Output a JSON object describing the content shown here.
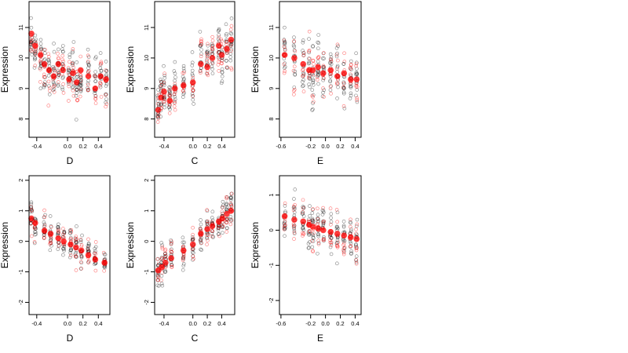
{
  "colors": {
    "observed": "#000000",
    "fitted": "#ff0000"
  },
  "chart_data": [
    {
      "type": "scatter",
      "xlabel": "D",
      "ylabel": "Expression",
      "xticks": [
        -0.4,
        0.0,
        0.2,
        0.4
      ],
      "xtick_labels": [
        "-0.4",
        "0.0",
        "0.2",
        "0.4"
      ],
      "yticks": [
        8,
        9,
        10,
        11
      ],
      "ytick_labels": [
        "8",
        "9",
        "10",
        "11"
      ],
      "xlim": [
        -0.5,
        0.55
      ],
      "ylim": [
        7.4,
        11.85
      ],
      "seed": 11,
      "groups": [
        [
          -0.47,
          10.6,
          10.8,
          0.45
        ],
        [
          -0.42,
          10.3,
          10.4,
          0.4
        ],
        [
          -0.35,
          9.9,
          10.1,
          0.55
        ],
        [
          -0.3,
          9.6,
          9.8,
          0.5
        ],
        [
          -0.24,
          9.4,
          9.6,
          0.6
        ],
        [
          -0.18,
          9.3,
          9.4,
          0.55
        ],
        [
          -0.12,
          9.6,
          9.8,
          0.5
        ],
        [
          -0.06,
          9.7,
          9.6,
          0.55
        ],
        [
          0.02,
          9.4,
          9.3,
          0.55
        ],
        [
          0.07,
          9.7,
          9.5,
          0.7
        ],
        [
          0.12,
          9.1,
          9.2,
          0.6
        ],
        [
          0.17,
          9.3,
          9.6,
          0.6
        ],
        [
          0.27,
          9.5,
          9.4,
          0.6
        ],
        [
          0.36,
          9.1,
          9.0,
          0.55
        ],
        [
          0.43,
          9.4,
          9.4,
          0.5
        ],
        [
          0.5,
          9.2,
          9.3,
          0.5
        ]
      ]
    },
    {
      "type": "scatter",
      "xlabel": "C",
      "ylabel": "Expression",
      "xticks": [
        -0.4,
        0.0,
        0.2,
        0.4
      ],
      "xtick_labels": [
        "-0.4",
        "0.0",
        "0.2",
        "0.4"
      ],
      "yticks": [
        8,
        9,
        10,
        11
      ],
      "ytick_labels": [
        "8",
        "9",
        "10",
        "11"
      ],
      "xlim": [
        -0.53,
        0.58
      ],
      "ylim": [
        7.4,
        11.85
      ],
      "seed": 23,
      "groups": [
        [
          -0.48,
          8.4,
          8.3,
          0.5
        ],
        [
          -0.44,
          8.8,
          8.7,
          0.55
        ],
        [
          -0.4,
          9.0,
          8.9,
          0.55
        ],
        [
          -0.32,
          8.7,
          8.6,
          0.4
        ],
        [
          -0.25,
          9.0,
          9.0,
          0.5
        ],
        [
          -0.13,
          9.1,
          9.1,
          0.5
        ],
        [
          0.0,
          9.2,
          9.2,
          0.5
        ],
        [
          0.11,
          10.0,
          9.8,
          0.5
        ],
        [
          0.2,
          9.9,
          9.7,
          0.45
        ],
        [
          0.27,
          10.1,
          10.0,
          0.4
        ],
        [
          0.36,
          10.3,
          10.4,
          0.55
        ],
        [
          0.4,
          10.0,
          10.1,
          0.5
        ],
        [
          0.47,
          10.4,
          10.3,
          0.5
        ],
        [
          0.53,
          10.5,
          10.6,
          0.5
        ]
      ]
    },
    {
      "type": "scatter",
      "xlabel": "E",
      "ylabel": "Expression",
      "xticks": [
        -0.6,
        -0.2,
        0.0,
        0.2,
        0.4
      ],
      "xtick_labels": [
        "-0.6",
        "-0.2",
        "0.0",
        "0.2",
        "0.4"
      ],
      "yticks": [
        8,
        9,
        10,
        11
      ],
      "ytick_labels": [
        "8",
        "9",
        "10",
        "11"
      ],
      "xlim": [
        -0.62,
        0.48
      ],
      "ylim": [
        7.4,
        11.85
      ],
      "seed": 37,
      "groups": [
        [
          -0.55,
          10.2,
          10.1,
          0.5
        ],
        [
          -0.42,
          9.8,
          10.0,
          0.7
        ],
        [
          -0.3,
          9.7,
          9.8,
          0.7
        ],
        [
          -0.22,
          9.6,
          9.6,
          0.7
        ],
        [
          -0.17,
          9.5,
          9.6,
          0.75
        ],
        [
          -0.1,
          9.7,
          9.7,
          0.6
        ],
        [
          -0.03,
          9.6,
          9.5,
          0.6
        ],
        [
          0.07,
          9.5,
          9.6,
          0.6
        ],
        [
          0.16,
          9.5,
          9.4,
          0.6
        ],
        [
          0.25,
          9.4,
          9.5,
          0.6
        ],
        [
          0.34,
          9.4,
          9.3,
          0.6
        ],
        [
          0.42,
          9.3,
          9.3,
          0.6
        ]
      ]
    },
    {
      "type": "scatter",
      "xlabel": "D",
      "ylabel": "Expression",
      "xticks": [
        -0.4,
        0.0,
        0.2,
        0.4
      ],
      "xtick_labels": [
        "-0.4",
        "0.0",
        "0.2",
        "0.4"
      ],
      "yticks": [
        -2,
        -1,
        0,
        1,
        2
      ],
      "ytick_labels": [
        "-2",
        "-1",
        "0",
        "1",
        "2"
      ],
      "xlim": [
        -0.5,
        0.55
      ],
      "ylim": [
        -2.4,
        2.15
      ],
      "seed": 41,
      "groups": [
        [
          -0.47,
          0.8,
          0.75,
          0.35
        ],
        [
          -0.42,
          0.5,
          0.6,
          0.35
        ],
        [
          -0.3,
          0.4,
          0.35,
          0.35
        ],
        [
          -0.22,
          0.2,
          0.25,
          0.35
        ],
        [
          -0.12,
          0.15,
          0.1,
          0.35
        ],
        [
          -0.05,
          0.0,
          0.0,
          0.35
        ],
        [
          0.04,
          -0.1,
          -0.1,
          0.35
        ],
        [
          0.11,
          -0.2,
          -0.2,
          0.35
        ],
        [
          0.18,
          -0.25,
          -0.3,
          0.35
        ],
        [
          0.27,
          -0.4,
          -0.45,
          0.3
        ],
        [
          0.36,
          -0.55,
          -0.6,
          0.3
        ],
        [
          0.48,
          -0.65,
          -0.7,
          0.25
        ]
      ]
    },
    {
      "type": "scatter",
      "xlabel": "C",
      "ylabel": "Expression",
      "xticks": [
        -0.4,
        0.0,
        0.2,
        0.4
      ],
      "xtick_labels": [
        "-0.4",
        "0.0",
        "0.2",
        "0.4"
      ],
      "yticks": [
        -2,
        -1,
        0,
        1,
        2
      ],
      "ytick_labels": [
        "-2",
        "-1",
        "0",
        "1",
        "2"
      ],
      "xlim": [
        -0.53,
        0.58
      ],
      "ylim": [
        -2.4,
        2.15
      ],
      "seed": 53,
      "groups": [
        [
          -0.48,
          -0.9,
          -0.95,
          0.4
        ],
        [
          -0.43,
          -0.8,
          -0.85,
          0.4
        ],
        [
          -0.38,
          -0.6,
          -0.7,
          0.4
        ],
        [
          -0.3,
          -0.5,
          -0.55,
          0.4
        ],
        [
          -0.13,
          -0.3,
          -0.3,
          0.35
        ],
        [
          0.0,
          -0.1,
          -0.1,
          0.35
        ],
        [
          0.11,
          0.2,
          0.25,
          0.4
        ],
        [
          0.2,
          0.35,
          0.4,
          0.4
        ],
        [
          0.27,
          0.45,
          0.5,
          0.35
        ],
        [
          0.36,
          0.6,
          0.65,
          0.4
        ],
        [
          0.41,
          0.75,
          0.75,
          0.4
        ],
        [
          0.47,
          0.9,
          0.9,
          0.4
        ],
        [
          0.53,
          1.0,
          1.0,
          0.4
        ]
      ]
    },
    {
      "type": "scatter",
      "xlabel": "E",
      "ylabel": "Expression",
      "xticks": [
        -0.6,
        -0.2,
        0.0,
        0.2,
        0.4
      ],
      "xtick_labels": [
        "-0.6",
        "-0.2",
        "0.0",
        "0.2",
        "0.4"
      ],
      "yticks": [
        -2,
        -1,
        0,
        1
      ],
      "ytick_labels": [
        "-2",
        "-1",
        "0",
        "1"
      ],
      "xlim": [
        -0.62,
        0.48
      ],
      "ylim": [
        -2.4,
        1.55
      ],
      "seed": 67,
      "groups": [
        [
          -0.55,
          0.35,
          0.4,
          0.35
        ],
        [
          -0.42,
          0.3,
          0.3,
          0.45
        ],
        [
          -0.3,
          0.2,
          0.25,
          0.45
        ],
        [
          -0.22,
          0.15,
          0.15,
          0.45
        ],
        [
          -0.17,
          0.1,
          0.1,
          0.45
        ],
        [
          -0.1,
          0.05,
          0.05,
          0.45
        ],
        [
          -0.03,
          0.0,
          0.0,
          0.4
        ],
        [
          0.07,
          -0.05,
          -0.05,
          0.4
        ],
        [
          0.16,
          -0.1,
          -0.1,
          0.4
        ],
        [
          0.25,
          -0.15,
          -0.15,
          0.4
        ],
        [
          0.34,
          -0.2,
          -0.2,
          0.4
        ],
        [
          0.42,
          -0.25,
          -0.25,
          0.45
        ]
      ]
    }
  ]
}
